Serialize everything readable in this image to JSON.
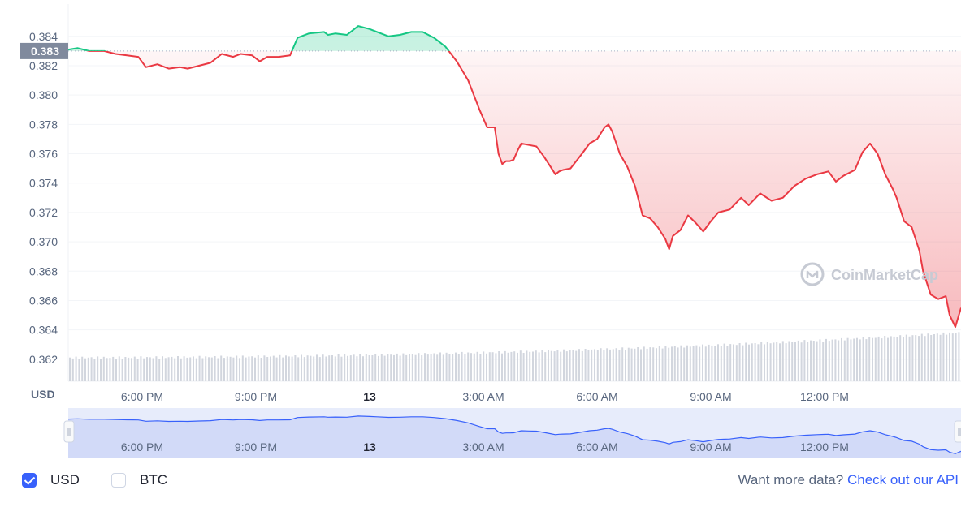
{
  "chart_data": {
    "type": "line",
    "currency_label": "USD",
    "ylim": [
      0.3605,
      0.3862
    ],
    "y_ticks": [
      "0.362",
      "0.364",
      "0.366",
      "0.368",
      "0.370",
      "0.372",
      "0.374",
      "0.376",
      "0.378",
      "0.380",
      "0.382",
      "0.384"
    ],
    "reference_price": 0.383,
    "reference_label": "0.383",
    "x_ticks": [
      "6:00 PM",
      "9:00 PM",
      "13",
      "3:00 AM",
      "6:00 AM",
      "9:00 AM",
      "12:00 PM"
    ],
    "x_hours": [
      18,
      21,
      24,
      27,
      30,
      33,
      36
    ],
    "x_range_hours": [
      16.05,
      39.6
    ],
    "colors": {
      "up": "#16c784",
      "down": "#ea3943",
      "navigator": "#3861fb"
    },
    "series": [
      {
        "x": [
          16.05,
          16.3,
          16.6,
          17.0,
          17.3,
          17.6,
          17.9,
          18.1,
          18.4,
          18.7,
          19.0,
          19.2,
          19.5,
          19.8,
          20.1,
          20.4,
          20.6,
          20.9,
          21.1,
          21.3,
          21.6,
          21.9,
          22.1,
          22.4,
          22.8,
          22.9,
          23.1,
          23.4,
          23.7,
          24.0,
          24.2,
          24.5,
          24.8,
          25.1,
          25.4,
          25.7,
          26.0,
          26.3,
          26.6,
          26.9,
          27.1,
          27.3,
          27.4,
          27.5,
          27.6,
          27.7,
          27.8,
          27.9,
          28.0,
          28.2,
          28.4,
          28.6,
          28.8,
          28.9,
          29.0,
          29.1,
          29.3,
          29.6,
          29.8,
          30.0,
          30.2,
          30.3,
          30.4,
          30.6,
          30.8,
          31.0,
          31.2,
          31.4,
          31.6,
          31.8,
          31.9,
          32.0,
          32.2,
          32.4,
          32.6,
          32.8,
          33.0,
          33.2,
          33.5,
          33.8,
          34.0,
          34.3,
          34.6,
          34.9,
          35.2,
          35.5,
          35.8,
          36.1,
          36.3,
          36.5,
          36.8,
          37.0,
          37.2,
          37.4,
          37.6,
          37.8,
          37.9,
          38.1,
          38.3,
          38.5,
          38.6,
          38.8,
          39.0,
          39.2,
          39.3,
          39.45,
          39.6
        ],
        "values": [
          0.3831,
          0.3832,
          0.383,
          0.383,
          0.3828,
          0.3827,
          0.3826,
          0.3819,
          0.3821,
          0.3818,
          0.3819,
          0.3818,
          0.382,
          0.3822,
          0.3828,
          0.3826,
          0.3828,
          0.3827,
          0.3823,
          0.3826,
          0.3826,
          0.3827,
          0.3839,
          0.3842,
          0.3843,
          0.3841,
          0.3842,
          0.3841,
          0.3847,
          0.3845,
          0.3843,
          0.384,
          0.3841,
          0.3843,
          0.3843,
          0.3839,
          0.3833,
          0.3823,
          0.381,
          0.379,
          0.3778,
          0.3778,
          0.376,
          0.3753,
          0.3755,
          0.3755,
          0.3756,
          0.3762,
          0.3767,
          0.3766,
          0.3765,
          0.3758,
          0.375,
          0.3746,
          0.3748,
          0.3749,
          0.375,
          0.376,
          0.3767,
          0.377,
          0.3778,
          0.378,
          0.3775,
          0.376,
          0.3751,
          0.3738,
          0.3718,
          0.3716,
          0.371,
          0.3702,
          0.3695,
          0.3704,
          0.3708,
          0.3718,
          0.3713,
          0.3707,
          0.3714,
          0.372,
          0.3722,
          0.373,
          0.3725,
          0.3733,
          0.3728,
          0.373,
          0.3738,
          0.3743,
          0.3746,
          0.3748,
          0.3741,
          0.3745,
          0.3749,
          0.3761,
          0.3767,
          0.376,
          0.3746,
          0.3736,
          0.373,
          0.3714,
          0.371,
          0.3694,
          0.368,
          0.3664,
          0.3661,
          0.3663,
          0.365,
          0.3642,
          0.3655
        ]
      }
    ]
  },
  "watermark": "CoinMarketCap",
  "legend": {
    "usd_label": "USD",
    "usd_checked": true,
    "btc_label": "BTC",
    "btc_checked": false
  },
  "footer": {
    "more_text": "Want more data?",
    "api_link": "Check out our API"
  }
}
